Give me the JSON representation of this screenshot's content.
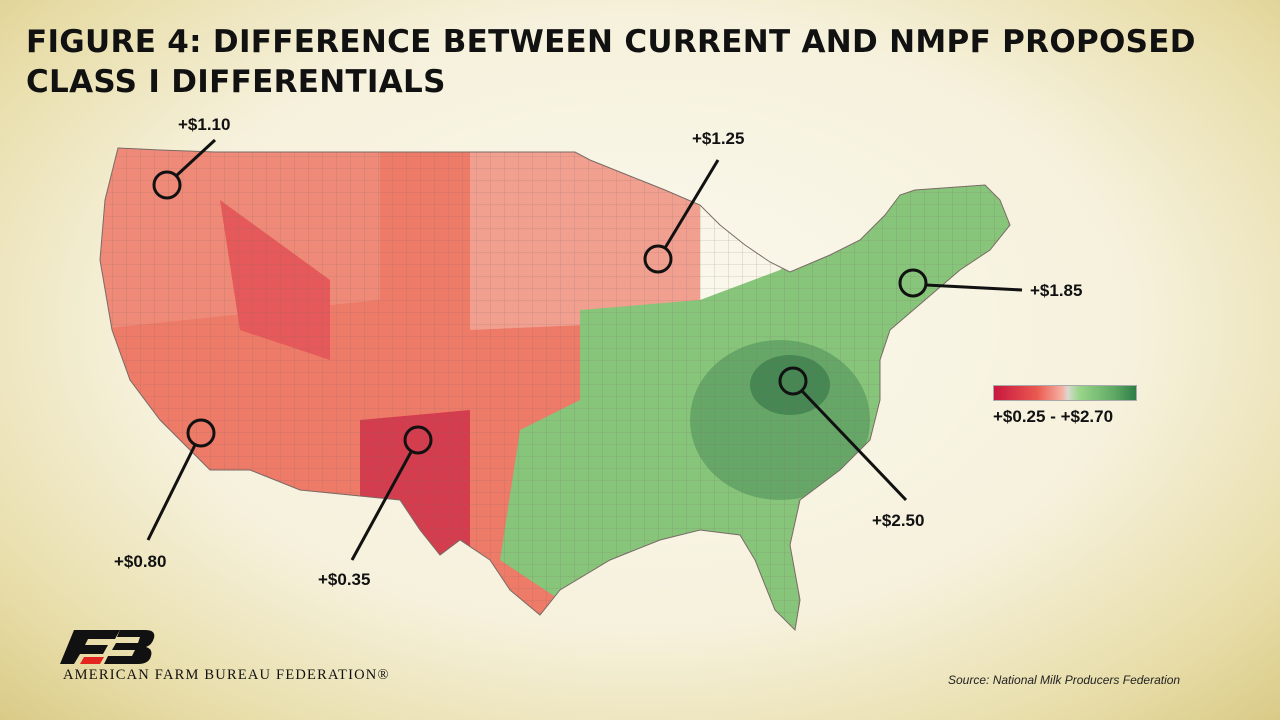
{
  "title": "FIGURE 4: DIFFERENCE BETWEEN CURRENT AND NMPF PROPOSED CLASS I DIFFERENTIALS",
  "legend": {
    "range_label": "+$0.25 - +$2.70",
    "min": 0.25,
    "max": 2.7,
    "colors": {
      "low": "#c8173f",
      "mid": "#d9d9d0",
      "high": "#2f7d47"
    }
  },
  "callouts": [
    {
      "id": "washington",
      "label": "+$1.10",
      "value": 1.1
    },
    {
      "id": "wisconsin",
      "label": "+$1.25",
      "value": 1.25
    },
    {
      "id": "new-england",
      "label": "+$1.85",
      "value": 1.85
    },
    {
      "id": "virginia",
      "label": "+$2.50",
      "value": 2.5
    },
    {
      "id": "southern-california",
      "label": "+$0.80",
      "value": 0.8
    },
    {
      "id": "west-texas",
      "label": "+$0.35",
      "value": 0.35
    }
  ],
  "logo": {
    "text": "AMERICAN FARM BUREAU FEDERATION®",
    "mark": "FB"
  },
  "source": "Source: National Milk Producers Federation"
}
